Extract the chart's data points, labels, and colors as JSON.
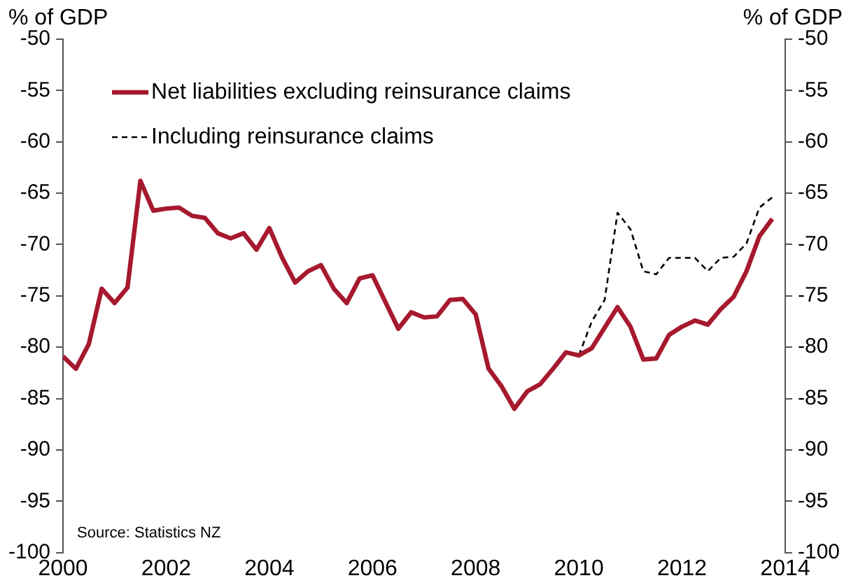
{
  "chart_data": {
    "type": "line",
    "ylabel": "% of GDP",
    "y2label": "% of GDP",
    "annotations": [
      "Source: Statistics NZ"
    ],
    "xlim": [
      2000,
      2014
    ],
    "xticks": [
      2000,
      2002,
      2004,
      2006,
      2008,
      2010,
      2012,
      2014
    ],
    "ylim": [
      -100,
      -50
    ],
    "yticks": [
      -100,
      -95,
      -90,
      -85,
      -80,
      -75,
      -70,
      -65,
      -60,
      -55,
      -50
    ],
    "y2lim": [
      -100,
      -50
    ],
    "y2ticks": [
      -100,
      -95,
      -90,
      -85,
      -80,
      -75,
      -70,
      -65,
      -60,
      -55,
      -50
    ],
    "grid": false,
    "legend": "top left",
    "marker": "none",
    "series": [
      {
        "name": "Net liabilities excluding reinsurance claims",
        "color": "#a6192e",
        "line_style": "solid",
        "x": [
          2000,
          2000.25,
          2000.5,
          2000.75,
          2001,
          2001.25,
          2001.5,
          2001.75,
          2002,
          2002.25,
          2002.5,
          2002.75,
          2003,
          2003.25,
          2003.5,
          2003.75,
          2004,
          2004.25,
          2004.5,
          2004.75,
          2005,
          2005.25,
          2005.5,
          2005.75,
          2006,
          2006.25,
          2006.5,
          2006.75,
          2007,
          2007.25,
          2007.5,
          2007.75,
          2008,
          2008.25,
          2008.5,
          2008.75,
          2009,
          2009.25,
          2009.5,
          2009.75,
          2010,
          2010.25,
          2010.5,
          2010.75,
          2011,
          2011.25,
          2011.5,
          2011.75,
          2012,
          2012.25,
          2012.5,
          2012.75,
          2013,
          2013.25,
          2013.5,
          2013.75
        ],
        "values": [
          -80.9,
          -82.1,
          -79.7,
          -74.3,
          -75.7,
          -74.2,
          -63.8,
          -66.7,
          -66.5,
          -66.4,
          -67.2,
          -67.4,
          -68.9,
          -69.4,
          -68.9,
          -70.5,
          -68.4,
          -71.3,
          -73.7,
          -72.6,
          -72.0,
          -74.3,
          -75.7,
          -73.3,
          -73.0,
          -75.6,
          -78.2,
          -76.6,
          -77.1,
          -77.0,
          -75.4,
          -75.3,
          -76.8,
          -82.1,
          -83.8,
          -86.0,
          -84.3,
          -83.6,
          -82.1,
          -80.5,
          -80.8,
          -80.1,
          -78.1,
          -76.1,
          -78.0,
          -81.2,
          -81.1,
          -78.8,
          -78.0,
          -77.4,
          -77.8,
          -76.3,
          -75.1,
          -72.6,
          -69.2,
          -67.5
        ]
      },
      {
        "name": "Including reinsurance claims",
        "color": "#000000",
        "line_style": "dashed",
        "x": [
          2010,
          2010.25,
          2010.5,
          2010.75,
          2011,
          2011.25,
          2011.5,
          2011.75,
          2012,
          2012.25,
          2012.5,
          2012.75,
          2013,
          2013.25,
          2013.5,
          2013.75
        ],
        "values": [
          -80.8,
          -77.5,
          -75.4,
          -66.9,
          -68.5,
          -72.6,
          -72.9,
          -71.3,
          -71.3,
          -71.3,
          -72.6,
          -71.3,
          -71.2,
          -69.9,
          -66.4,
          -65.4
        ]
      }
    ]
  }
}
